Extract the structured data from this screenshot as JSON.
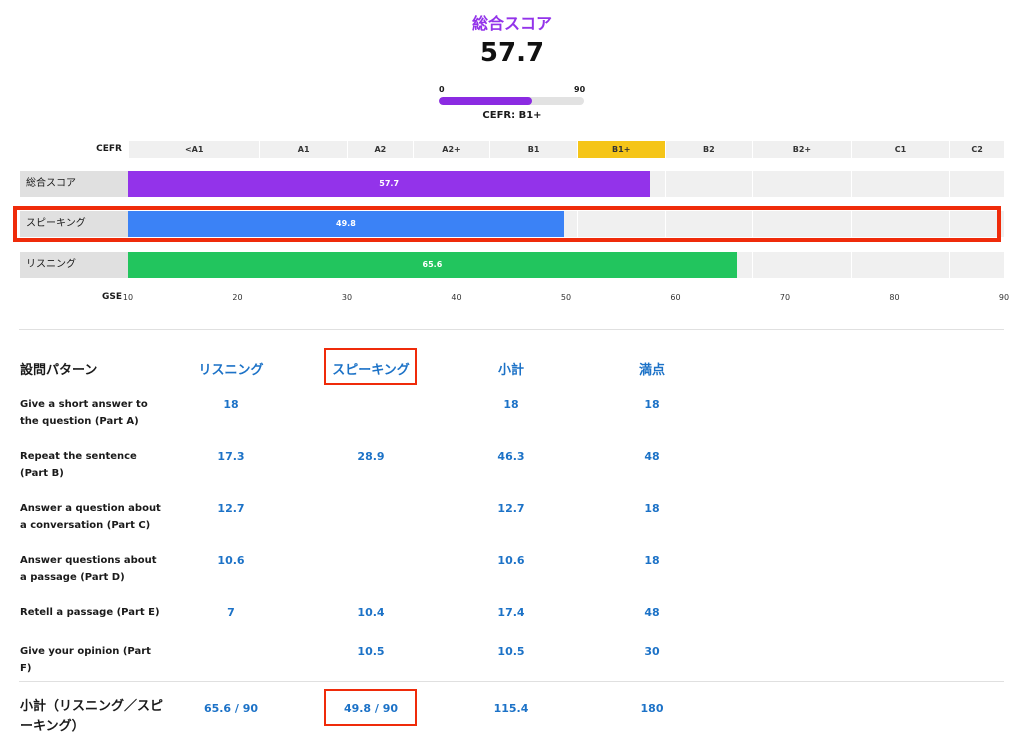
{
  "header": {
    "total_label": "総合スコア",
    "total_score": "57.7",
    "mini_bar": {
      "min_label": "0",
      "max_label": "90",
      "value": 57.7,
      "max": 90,
      "color": "#8b2be2"
    },
    "cefr_text": "CEFR: B1+"
  },
  "colors": {
    "accent_purple": "#9333ea",
    "highlight_red": "#ef2b0a",
    "link_blue": "#1c72c7",
    "cefr_active": "#f5c518"
  },
  "chart_data": {
    "type": "bar",
    "orientation": "horizontal",
    "cefr_axis_label": "CEFR",
    "cefr_levels": [
      {
        "label": "<A1",
        "from": 10,
        "to": 22
      },
      {
        "label": "A1",
        "from": 22,
        "to": 30
      },
      {
        "label": "A2",
        "from": 30,
        "to": 36
      },
      {
        "label": "A2+",
        "from": 36,
        "to": 43
      },
      {
        "label": "B1",
        "from": 43,
        "to": 51
      },
      {
        "label": "B1+",
        "from": 51,
        "to": 59
      },
      {
        "label": "B2",
        "from": 59,
        "to": 67
      },
      {
        "label": "B2+",
        "from": 67,
        "to": 76
      },
      {
        "label": "C1",
        "from": 76,
        "to": 85
      },
      {
        "label": "C2",
        "from": 85,
        "to": 90
      }
    ],
    "active_cefr": "B1+",
    "series": [
      {
        "name": "総合スコア",
        "value": 57.7,
        "value_label": "57.7",
        "color": "#9333ea"
      },
      {
        "name": "スピーキング",
        "value": 49.8,
        "value_label": "49.8",
        "color": "#3b82f6",
        "highlighted": true
      },
      {
        "name": "リスニング",
        "value": 65.6,
        "value_label": "65.6",
        "color": "#22c55e"
      }
    ],
    "xlabel": "GSE",
    "xlim": [
      10,
      90
    ],
    "x_ticks": [
      10,
      20,
      30,
      40,
      50,
      60,
      70,
      80,
      90
    ],
    "gridlines_at": [
      10,
      22,
      30,
      36,
      43,
      51,
      59,
      67,
      76,
      85,
      90
    ]
  },
  "table": {
    "question_header": "設問パターン",
    "columns": [
      "リスニング",
      "スピーキング",
      "小計",
      "満点"
    ],
    "highlighted_column": 1,
    "rows": [
      {
        "label": "Give a short answer to the question (Part A)",
        "values": [
          "18",
          "",
          "18",
          "18"
        ]
      },
      {
        "label": "Repeat the sentence (Part B)",
        "values": [
          "17.3",
          "28.9",
          "46.3",
          "48"
        ]
      },
      {
        "label": "Answer a question about a conversation (Part C)",
        "values": [
          "12.7",
          "",
          "12.7",
          "18"
        ]
      },
      {
        "label": "Answer questions about a passage (Part D)",
        "values": [
          "10.6",
          "",
          "10.6",
          "18"
        ]
      },
      {
        "label": "Retell a passage (Part E)",
        "values": [
          "7",
          "10.4",
          "17.4",
          "48"
        ]
      },
      {
        "label": "Give your opinion (Part F)",
        "values": [
          "",
          "10.5",
          "10.5",
          "30"
        ]
      }
    ],
    "subtotal": {
      "label": "小計（リスニング／スピーキング）",
      "values": [
        "65.6 / 90",
        "49.8 / 90",
        "115.4",
        "180"
      ]
    }
  }
}
